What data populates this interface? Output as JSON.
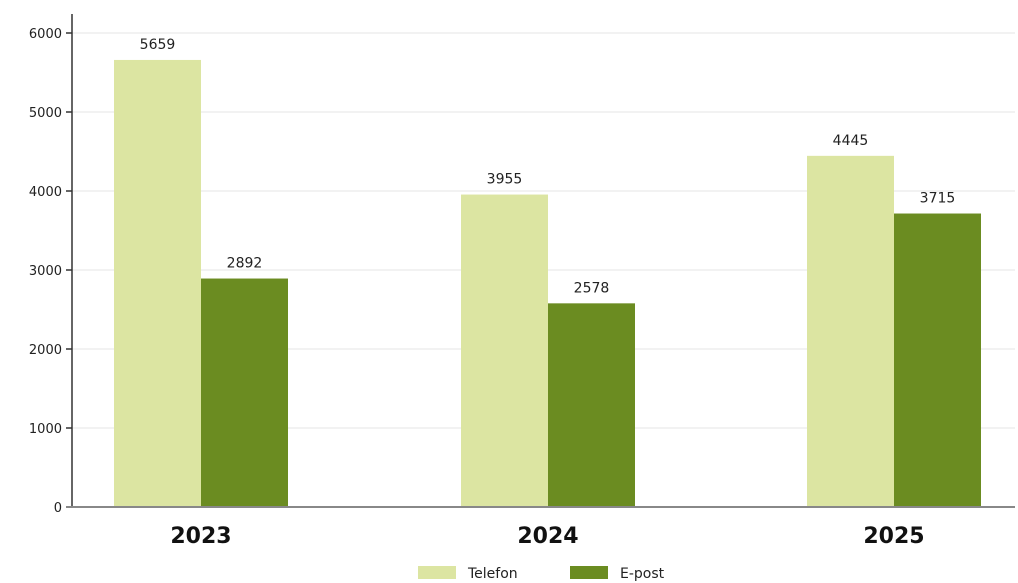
{
  "chart_data": {
    "type": "bar",
    "categories": [
      "2023",
      "2024",
      "2025"
    ],
    "series": [
      {
        "name": "Telefon",
        "values": [
          5659,
          3955,
          4445
        ],
        "color": "#dce5a2"
      },
      {
        "name": "E-post",
        "values": [
          2892,
          2578,
          3715
        ],
        "color": "#6b8c21"
      }
    ],
    "title": "",
    "xlabel": "",
    "ylabel": "",
    "ylim": [
      0,
      6000
    ],
    "yticks": [
      "0",
      "1000",
      "2000",
      "3000",
      "4000",
      "5000",
      "6000"
    ],
    "grid": true,
    "legend_position": "bottom-center"
  }
}
